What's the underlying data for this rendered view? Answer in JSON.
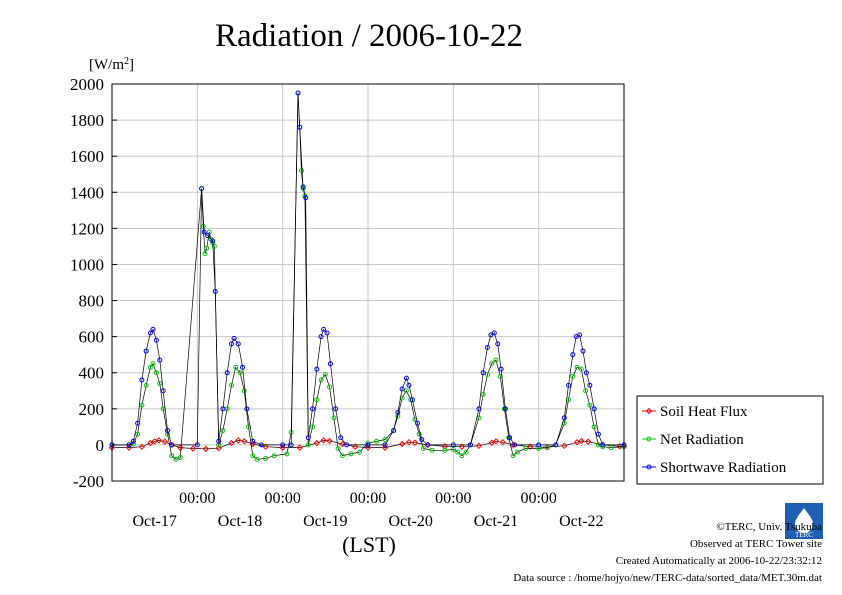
{
  "chart_data": {
    "type": "line",
    "title": "Radiation / 2006-10-22",
    "ylabel": "[W/m",
    "ylabel_sup": "2",
    "ylabel_close": "]",
    "xlabel": "(LST)",
    "ylim": [
      -200,
      2000
    ],
    "yticks": [
      "2000",
      "1800",
      "1600",
      "1400",
      "1200",
      "1000",
      "800",
      "600",
      "400",
      "200",
      "0",
      "-200"
    ],
    "x_range_days": [
      0,
      6
    ],
    "time_ticks": [
      "00:00",
      "00:00",
      "00:00",
      "00:00",
      "00:00"
    ],
    "date_labels": [
      "Oct-17",
      "Oct-18",
      "Oct-19",
      "Oct-20",
      "Oct-21",
      "Oct-22"
    ],
    "grid": true,
    "legend_position": "bottom-right",
    "series": [
      {
        "name": "Soil Heat Flux",
        "color": "#ff0000",
        "marker": "diamond",
        "points": [
          [
            0.0,
            -15
          ],
          [
            0.2,
            -15
          ],
          [
            0.35,
            -10
          ],
          [
            0.45,
            10
          ],
          [
            0.5,
            20
          ],
          [
            0.55,
            25
          ],
          [
            0.62,
            18
          ],
          [
            0.7,
            0
          ],
          [
            0.8,
            -15
          ],
          [
            0.95,
            -20
          ],
          [
            1.1,
            -22
          ],
          [
            1.25,
            -18
          ],
          [
            1.4,
            10
          ],
          [
            1.48,
            25
          ],
          [
            1.55,
            20
          ],
          [
            1.65,
            5
          ],
          [
            1.8,
            -10
          ],
          [
            2.0,
            -15
          ],
          [
            2.2,
            -15
          ],
          [
            2.4,
            10
          ],
          [
            2.48,
            25
          ],
          [
            2.55,
            22
          ],
          [
            2.7,
            5
          ],
          [
            2.85,
            -10
          ],
          [
            3.0,
            -15
          ],
          [
            3.2,
            -15
          ],
          [
            3.4,
            5
          ],
          [
            3.48,
            15
          ],
          [
            3.55,
            12
          ],
          [
            3.7,
            0
          ],
          [
            3.9,
            -8
          ],
          [
            4.1,
            -10
          ],
          [
            4.3,
            -5
          ],
          [
            4.45,
            12
          ],
          [
            4.5,
            20
          ],
          [
            4.58,
            15
          ],
          [
            4.7,
            0
          ],
          [
            4.9,
            -10
          ],
          [
            5.1,
            -12
          ],
          [
            5.3,
            -5
          ],
          [
            5.45,
            15
          ],
          [
            5.5,
            22
          ],
          [
            5.58,
            18
          ],
          [
            5.75,
            0
          ],
          [
            5.95,
            -8
          ],
          [
            6.0,
            -8
          ]
        ]
      },
      {
        "name": "Net Radiation",
        "color": "#00cc00",
        "marker": "circle",
        "points": [
          [
            0.0,
            0
          ],
          [
            0.2,
            0
          ],
          [
            0.25,
            5
          ],
          [
            0.3,
            60
          ],
          [
            0.35,
            220
          ],
          [
            0.4,
            330
          ],
          [
            0.45,
            430
          ],
          [
            0.48,
            450
          ],
          [
            0.52,
            400
          ],
          [
            0.56,
            340
          ],
          [
            0.6,
            200
          ],
          [
            0.65,
            60
          ],
          [
            0.7,
            -60
          ],
          [
            0.75,
            -80
          ],
          [
            0.8,
            -70
          ],
          [
            1.05,
            1420
          ],
          [
            1.07,
            1210
          ],
          [
            1.09,
            1060
          ],
          [
            1.11,
            1090
          ],
          [
            1.14,
            1180
          ],
          [
            1.16,
            1140
          ],
          [
            1.18,
            1120
          ],
          [
            1.2,
            1100
          ],
          [
            1.21,
            850
          ],
          [
            1.25,
            0
          ],
          [
            1.3,
            80
          ],
          [
            1.35,
            200
          ],
          [
            1.4,
            330
          ],
          [
            1.45,
            430
          ],
          [
            1.5,
            400
          ],
          [
            1.55,
            300
          ],
          [
            1.6,
            100
          ],
          [
            1.65,
            -60
          ],
          [
            1.7,
            -80
          ],
          [
            1.8,
            -75
          ],
          [
            1.9,
            -60
          ],
          [
            2.05,
            -50
          ],
          [
            2.1,
            70
          ],
          [
            2.18,
            1950
          ],
          [
            2.2,
            1760
          ],
          [
            2.22,
            1520
          ],
          [
            2.24,
            1420
          ],
          [
            2.26,
            1380
          ],
          [
            2.3,
            0
          ],
          [
            2.35,
            100
          ],
          [
            2.4,
            250
          ],
          [
            2.45,
            360
          ],
          [
            2.5,
            390
          ],
          [
            2.55,
            320
          ],
          [
            2.6,
            150
          ],
          [
            2.65,
            -20
          ],
          [
            2.7,
            -60
          ],
          [
            2.8,
            -50
          ],
          [
            2.9,
            -40
          ],
          [
            3.0,
            10
          ],
          [
            3.1,
            20
          ],
          [
            3.2,
            30
          ],
          [
            3.3,
            80
          ],
          [
            3.35,
            160
          ],
          [
            3.4,
            260
          ],
          [
            3.45,
            300
          ],
          [
            3.5,
            250
          ],
          [
            3.55,
            140
          ],
          [
            3.6,
            60
          ],
          [
            3.65,
            -20
          ],
          [
            3.75,
            -30
          ],
          [
            3.9,
            -30
          ],
          [
            4.0,
            -25
          ],
          [
            4.05,
            -40
          ],
          [
            4.1,
            -60
          ],
          [
            4.15,
            -40
          ],
          [
            4.2,
            0
          ],
          [
            4.3,
            150
          ],
          [
            4.35,
            280
          ],
          [
            4.4,
            390
          ],
          [
            4.45,
            450
          ],
          [
            4.5,
            470
          ],
          [
            4.55,
            380
          ],
          [
            4.6,
            200
          ],
          [
            4.65,
            40
          ],
          [
            4.7,
            -60
          ],
          [
            4.75,
            -40
          ],
          [
            4.85,
            -20
          ],
          [
            5.0,
            -20
          ],
          [
            5.1,
            -15
          ],
          [
            5.2,
            0
          ],
          [
            5.3,
            120
          ],
          [
            5.35,
            250
          ],
          [
            5.4,
            380
          ],
          [
            5.45,
            430
          ],
          [
            5.5,
            420
          ],
          [
            5.55,
            300
          ],
          [
            5.6,
            220
          ],
          [
            5.65,
            100
          ],
          [
            5.7,
            0
          ],
          [
            5.75,
            -10
          ],
          [
            5.85,
            -15
          ],
          [
            6.0,
            -10
          ]
        ]
      },
      {
        "name": "Shortwave Radiation",
        "color": "#0000ff",
        "marker": "circle",
        "points": [
          [
            0.0,
            0
          ],
          [
            0.2,
            0
          ],
          [
            0.25,
            20
          ],
          [
            0.3,
            120
          ],
          [
            0.35,
            360
          ],
          [
            0.4,
            520
          ],
          [
            0.45,
            620
          ],
          [
            0.48,
            640
          ],
          [
            0.52,
            580
          ],
          [
            0.56,
            470
          ],
          [
            0.6,
            300
          ],
          [
            0.65,
            80
          ],
          [
            0.7,
            0
          ],
          [
            1.0,
            0
          ],
          [
            1.05,
            1420
          ],
          [
            1.08,
            1180
          ],
          [
            1.12,
            1160
          ],
          [
            1.18,
            1130
          ],
          [
            1.21,
            850
          ],
          [
            1.25,
            20
          ],
          [
            1.3,
            200
          ],
          [
            1.35,
            400
          ],
          [
            1.4,
            560
          ],
          [
            1.43,
            590
          ],
          [
            1.48,
            560
          ],
          [
            1.53,
            430
          ],
          [
            1.58,
            200
          ],
          [
            1.65,
            20
          ],
          [
            1.75,
            0
          ],
          [
            2.0,
            0
          ],
          [
            2.1,
            0
          ],
          [
            2.18,
            1950
          ],
          [
            2.2,
            1760
          ],
          [
            2.24,
            1430
          ],
          [
            2.27,
            1370
          ],
          [
            2.3,
            40
          ],
          [
            2.35,
            200
          ],
          [
            2.4,
            420
          ],
          [
            2.45,
            600
          ],
          [
            2.48,
            640
          ],
          [
            2.52,
            620
          ],
          [
            2.56,
            450
          ],
          [
            2.62,
            200
          ],
          [
            2.68,
            40
          ],
          [
            2.75,
            0
          ],
          [
            3.0,
            0
          ],
          [
            3.2,
            0
          ],
          [
            3.3,
            80
          ],
          [
            3.35,
            180
          ],
          [
            3.4,
            310
          ],
          [
            3.45,
            370
          ],
          [
            3.48,
            330
          ],
          [
            3.52,
            250
          ],
          [
            3.58,
            120
          ],
          [
            3.63,
            30
          ],
          [
            3.7,
            0
          ],
          [
            4.0,
            0
          ],
          [
            4.2,
            0
          ],
          [
            4.3,
            200
          ],
          [
            4.35,
            400
          ],
          [
            4.4,
            540
          ],
          [
            4.44,
            610
          ],
          [
            4.48,
            620
          ],
          [
            4.52,
            560
          ],
          [
            4.56,
            420
          ],
          [
            4.61,
            200
          ],
          [
            4.66,
            40
          ],
          [
            4.72,
            0
          ],
          [
            5.0,
            0
          ],
          [
            5.2,
            0
          ],
          [
            5.3,
            150
          ],
          [
            5.35,
            330
          ],
          [
            5.4,
            500
          ],
          [
            5.44,
            600
          ],
          [
            5.48,
            610
          ],
          [
            5.52,
            520
          ],
          [
            5.56,
            400
          ],
          [
            5.6,
            330
          ],
          [
            5.65,
            200
          ],
          [
            5.7,
            60
          ],
          [
            5.75,
            0
          ],
          [
            6.0,
            0
          ]
        ]
      }
    ]
  },
  "credits": {
    "copyright": "©TERC, Univ. Tsukuba",
    "observed": "Observed at TERC Tower site",
    "created": "Created Automatically at 2006-10-22/23:32:12",
    "source": "Data source : /home/hojyo/new/TERC-data/sorted_data/MET.30m.dat",
    "logo_text": "TERC"
  }
}
